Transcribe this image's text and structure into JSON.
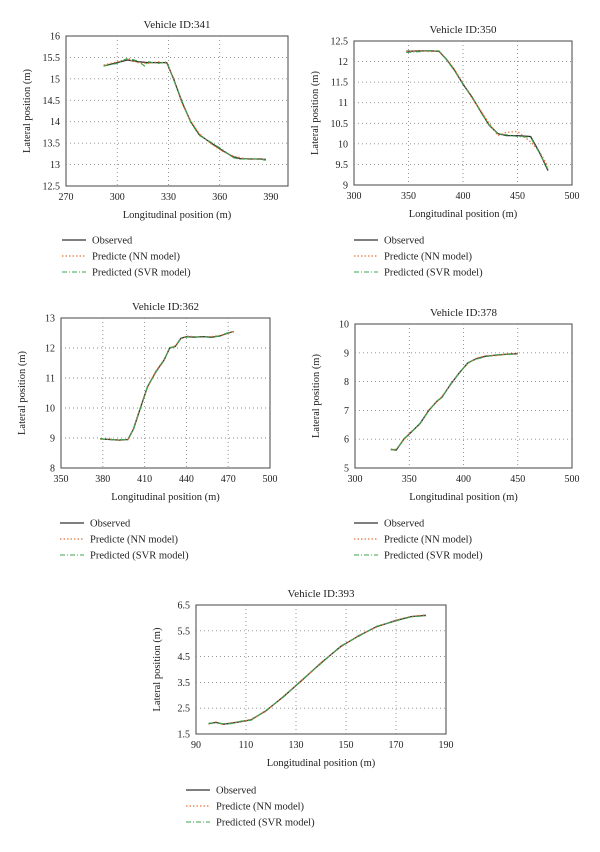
{
  "legend": {
    "observed": "Observed",
    "nn": "Predicte (NN model)",
    "svr": "Predicted (SVR model)"
  },
  "colors": {
    "observed": "#333333",
    "nn": "#e8743b",
    "svr": "#3aa64a",
    "grid": "#8a8a8a",
    "frame": "#444444"
  },
  "chart_data": [
    {
      "type": "line",
      "title": "Vehicle ID:341",
      "xlabel": "Longitudinal position (m)",
      "ylabel": "Lateral position (m)",
      "xlim": [
        270,
        400
      ],
      "ylim": [
        12.5,
        16
      ],
      "xticks": [
        270,
        300,
        330,
        360,
        390
      ],
      "yticks": [
        12.5,
        13,
        13.5,
        14,
        14.5,
        15,
        15.5,
        16
      ],
      "grid": true,
      "series": [
        {
          "name": "Observed",
          "x": [
            292,
            300,
            306,
            312,
            318,
            324,
            329,
            333,
            338,
            343,
            348,
            355,
            362,
            368,
            372,
            378,
            384,
            387
          ],
          "y": [
            15.3,
            15.38,
            15.44,
            15.4,
            15.38,
            15.38,
            15.38,
            15.0,
            14.45,
            14.0,
            13.7,
            13.5,
            13.32,
            13.18,
            13.14,
            13.13,
            13.13,
            13.12
          ]
        },
        {
          "name": "Predicte (NN model)",
          "x": [
            292,
            300,
            306,
            312,
            318,
            324,
            329,
            333,
            338,
            343,
            348,
            355,
            362,
            368,
            372,
            378,
            384,
            387
          ],
          "y": [
            15.32,
            15.4,
            15.46,
            15.38,
            15.36,
            15.4,
            15.36,
            15.02,
            14.42,
            14.02,
            13.72,
            13.48,
            13.3,
            13.2,
            13.16,
            13.12,
            13.14,
            13.11
          ]
        },
        {
          "name": "Predicted (SVR model)",
          "x": [
            292,
            300,
            306,
            312,
            316,
            318,
            324,
            329,
            333,
            338,
            343,
            348,
            355,
            362,
            368,
            372,
            378,
            384,
            387
          ],
          "y": [
            15.3,
            15.36,
            15.48,
            15.42,
            15.3,
            15.4,
            15.36,
            15.4,
            14.98,
            14.48,
            13.98,
            13.68,
            13.52,
            13.34,
            13.16,
            13.12,
            13.14,
            13.12,
            13.1
          ]
        }
      ]
    },
    {
      "type": "line",
      "title": "Vehicle ID:350",
      "xlabel": "Longitudinal position (m)",
      "ylabel": "Lateral position (m)",
      "xlim": [
        300,
        500
      ],
      "ylim": [
        9,
        12.5
      ],
      "xticks": [
        300,
        350,
        400,
        450,
        500
      ],
      "yticks": [
        9,
        9.5,
        10,
        10.5,
        11,
        11.5,
        12,
        12.5
      ],
      "grid": true,
      "series": [
        {
          "name": "Observed",
          "x": [
            348,
            360,
            370,
            378,
            385,
            392,
            400,
            408,
            416,
            424,
            432,
            440,
            450,
            462,
            470,
            478
          ],
          "y": [
            12.25,
            12.26,
            12.26,
            12.25,
            12.05,
            11.8,
            11.45,
            11.15,
            10.8,
            10.45,
            10.25,
            10.2,
            10.2,
            10.18,
            9.8,
            9.35
          ]
        },
        {
          "name": "Predicte (NN model)",
          "x": [
            348,
            360,
            370,
            378,
            385,
            392,
            400,
            408,
            416,
            424,
            432,
            440,
            450,
            462,
            470,
            478
          ],
          "y": [
            12.24,
            12.27,
            12.24,
            12.26,
            12.06,
            11.82,
            11.48,
            11.12,
            10.82,
            10.5,
            10.2,
            10.28,
            10.3,
            10.05,
            9.82,
            9.45
          ]
        },
        {
          "name": "Predicted (SVR model)",
          "x": [
            348,
            360,
            370,
            378,
            385,
            392,
            400,
            408,
            416,
            424,
            432,
            440,
            450,
            462,
            470,
            478
          ],
          "y": [
            12.22,
            12.24,
            12.27,
            12.26,
            12.04,
            11.78,
            11.46,
            11.16,
            10.78,
            10.46,
            10.24,
            10.22,
            10.18,
            10.16,
            9.78,
            9.38
          ]
        }
      ]
    },
    {
      "type": "line",
      "title": "Vehicle ID:362",
      "xlabel": "Longitudinal position (m)",
      "ylabel": "Lateral position (m)",
      "xlim": [
        350,
        500
      ],
      "ylim": [
        8,
        13
      ],
      "xticks": [
        350,
        380,
        410,
        440,
        470,
        500
      ],
      "yticks": [
        8,
        9,
        10,
        11,
        12,
        13
      ],
      "grid": true,
      "series": [
        {
          "name": "Observed",
          "x": [
            378,
            385,
            392,
            398,
            402,
            407,
            412,
            418,
            424,
            428,
            432,
            436,
            440,
            446,
            452,
            458,
            464,
            470,
            474
          ],
          "y": [
            8.97,
            8.95,
            8.93,
            8.95,
            9.3,
            10.0,
            10.7,
            11.2,
            11.6,
            12.0,
            12.05,
            12.32,
            12.38,
            12.36,
            12.38,
            12.36,
            12.4,
            12.5,
            12.55
          ]
        },
        {
          "name": "Predicte (NN model)",
          "x": [
            378,
            385,
            392,
            398,
            402,
            407,
            412,
            418,
            424,
            428,
            432,
            436,
            440,
            446,
            452,
            458,
            464,
            470,
            474
          ],
          "y": [
            8.96,
            8.97,
            8.92,
            8.96,
            9.32,
            10.02,
            10.68,
            11.22,
            11.62,
            11.98,
            12.08,
            12.3,
            12.4,
            12.38,
            12.36,
            12.38,
            12.42,
            12.48,
            12.56
          ]
        },
        {
          "name": "Predicted (SVR model)",
          "x": [
            378,
            385,
            392,
            398,
            402,
            407,
            412,
            418,
            424,
            428,
            432,
            436,
            440,
            446,
            452,
            458,
            464,
            470,
            474
          ],
          "y": [
            8.98,
            8.94,
            8.95,
            8.94,
            9.28,
            9.98,
            10.72,
            11.18,
            11.58,
            12.02,
            12.04,
            12.34,
            12.36,
            12.37,
            12.37,
            12.35,
            12.41,
            12.51,
            12.54
          ]
        }
      ]
    },
    {
      "type": "line",
      "title": "Vehicle ID:378",
      "xlabel": "Longitudinal position (m)",
      "ylabel": "Lateral position (m)",
      "xlim": [
        300,
        500
      ],
      "ylim": [
        5,
        10
      ],
      "xticks": [
        300,
        350,
        400,
        450,
        500
      ],
      "yticks": [
        5,
        6,
        7,
        8,
        9,
        10
      ],
      "grid": true,
      "series": [
        {
          "name": "Observed",
          "x": [
            333,
            338,
            345,
            352,
            360,
            368,
            375,
            380,
            388,
            396,
            404,
            412,
            420,
            430,
            440,
            450
          ],
          "y": [
            5.65,
            5.62,
            6.0,
            6.25,
            6.55,
            7.0,
            7.3,
            7.45,
            7.9,
            8.3,
            8.65,
            8.8,
            8.88,
            8.92,
            8.95,
            8.97
          ]
        },
        {
          "name": "Predicte (NN model)",
          "x": [
            333,
            338,
            345,
            352,
            360,
            368,
            375,
            380,
            388,
            396,
            404,
            412,
            420,
            430,
            440,
            450
          ],
          "y": [
            5.62,
            5.66,
            5.98,
            6.28,
            6.52,
            7.02,
            7.28,
            7.48,
            7.88,
            8.32,
            8.62,
            8.82,
            8.9,
            8.9,
            8.96,
            8.98
          ]
        },
        {
          "name": "Predicted (SVR model)",
          "x": [
            333,
            338,
            345,
            352,
            360,
            368,
            375,
            380,
            388,
            396,
            404,
            412,
            420,
            430,
            440,
            450
          ],
          "y": [
            5.66,
            5.6,
            6.02,
            6.24,
            6.56,
            6.98,
            7.32,
            7.44,
            7.92,
            8.28,
            8.66,
            8.78,
            8.86,
            8.93,
            8.94,
            8.96
          ]
        }
      ]
    },
    {
      "type": "line",
      "title": "Vehicle ID:393",
      "xlabel": "Longitudinal position (m)",
      "ylabel": "Lateral position (m)",
      "xlim": [
        90,
        190
      ],
      "ylim": [
        1.5,
        6.5
      ],
      "xticks": [
        90,
        110,
        130,
        150,
        170,
        190
      ],
      "yticks": [
        1.5,
        2.5,
        3.5,
        4.5,
        5.5,
        6.5
      ],
      "grid": true,
      "series": [
        {
          "name": "Observed",
          "x": [
            95,
            98,
            101,
            104,
            108,
            112,
            118,
            125,
            132,
            140,
            148,
            155,
            162,
            170,
            176,
            182
          ],
          "y": [
            1.9,
            1.95,
            1.88,
            1.92,
            1.98,
            2.05,
            2.4,
            2.95,
            3.55,
            4.25,
            4.9,
            5.3,
            5.65,
            5.9,
            6.05,
            6.1
          ]
        },
        {
          "name": "Predicte (NN model)",
          "x": [
            95,
            98,
            101,
            104,
            108,
            112,
            118,
            125,
            132,
            140,
            148,
            155,
            162,
            170,
            176,
            182
          ],
          "y": [
            1.88,
            1.97,
            1.86,
            1.94,
            1.96,
            2.07,
            2.38,
            2.97,
            3.53,
            4.27,
            4.88,
            5.32,
            5.63,
            5.92,
            6.06,
            6.12
          ]
        },
        {
          "name": "Predicted (SVR model)",
          "x": [
            95,
            98,
            101,
            104,
            108,
            112,
            118,
            125,
            132,
            140,
            148,
            155,
            162,
            170,
            176,
            182
          ],
          "y": [
            1.92,
            1.93,
            1.9,
            1.9,
            2.0,
            2.03,
            2.42,
            2.93,
            3.57,
            4.23,
            4.92,
            5.28,
            5.67,
            5.88,
            6.04,
            6.08
          ]
        }
      ]
    }
  ]
}
